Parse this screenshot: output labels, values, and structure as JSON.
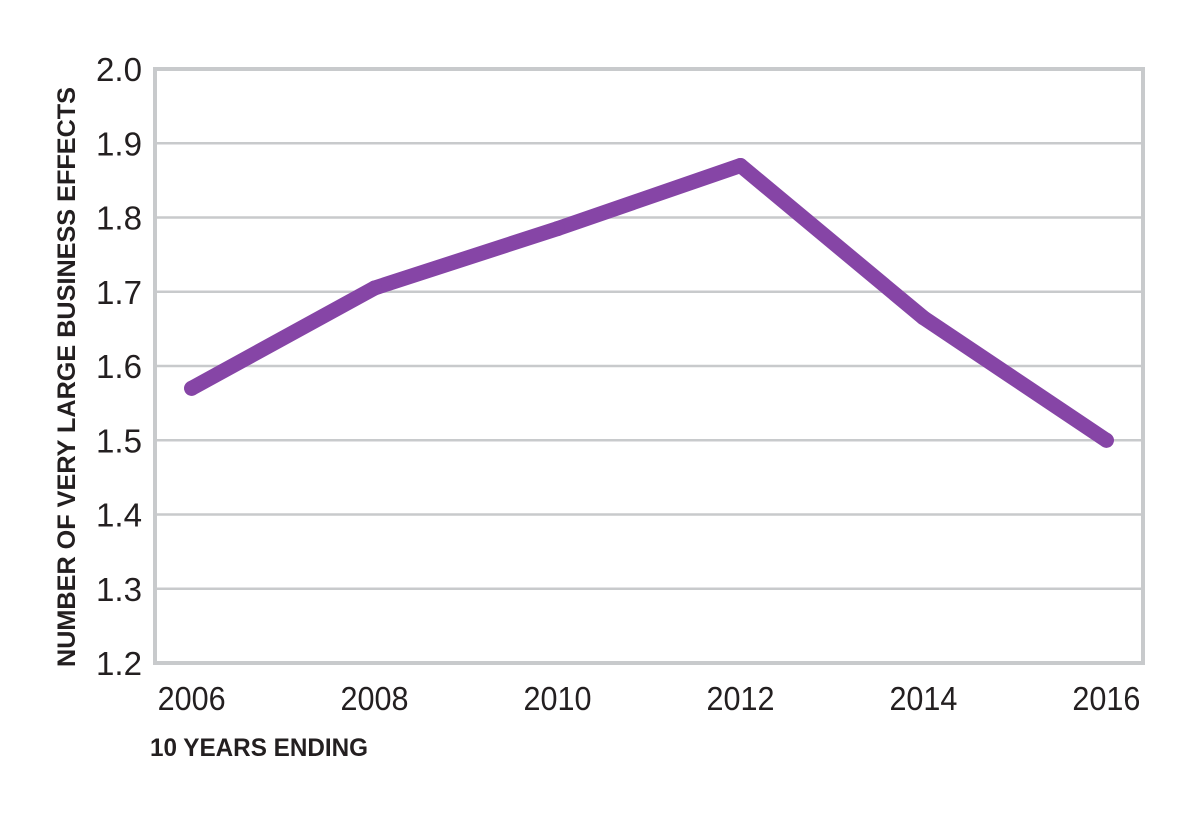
{
  "chart_data": {
    "type": "line",
    "title": "",
    "xlabel": "10 YEARS ENDING",
    "ylabel": "NUMBER OF VERY LARGE BUSINESS EFFECTS",
    "x_ticks": [
      "2006",
      "2008",
      "2010",
      "2012",
      "2014",
      "2016"
    ],
    "y_ticks": [
      "2.0",
      "1.9",
      "1.8",
      "1.7",
      "1.6",
      "1.5",
      "1.4",
      "1.3",
      "1.2"
    ],
    "xlim": [
      2005.6,
      2016.4
    ],
    "ylim": [
      1.2,
      2.0
    ],
    "grid": true,
    "series": [
      {
        "x": [
          2006,
          2008,
          2010,
          2012,
          2014,
          2016
        ],
        "y": [
          1.57,
          1.705,
          1.785,
          1.87,
          1.665,
          1.5
        ]
      }
    ],
    "colors": {
      "line": "#8645a6",
      "grid": "#c8cacc",
      "frame": "#c8cacc",
      "text": "#231f20"
    }
  }
}
